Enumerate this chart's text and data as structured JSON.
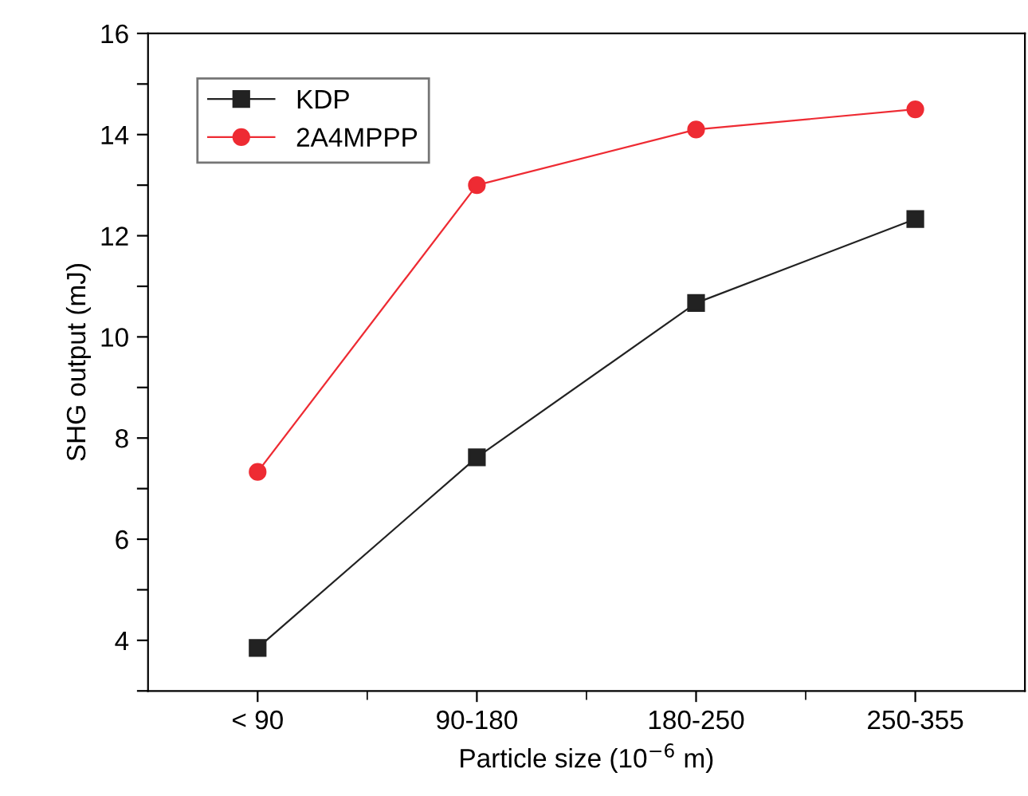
{
  "chart_data": {
    "type": "line",
    "xlabel": "Particle size (10$^{−6}$ m)",
    "ylabel": "SHG output (mJ)",
    "categories": [
      "< 90",
      "90-180",
      "180-250",
      "250-355"
    ],
    "series": [
      {
        "name": "KDP",
        "color": "#222222",
        "marker": "square",
        "values": [
          3.85,
          7.62,
          10.67,
          12.33
        ]
      },
      {
        "name": "2A4MPPP",
        "color": "#ee2b33",
        "marker": "circle",
        "values": [
          7.33,
          13.0,
          14.1,
          14.5
        ]
      }
    ],
    "ylim": [
      3,
      16
    ],
    "yticks": [
      {
        "value": 3,
        "label": null
      },
      4,
      {
        "value": 5,
        "label": null
      },
      6,
      {
        "value": 7,
        "label": null
      },
      8,
      {
        "value": 9,
        "label": null
      },
      10,
      {
        "value": 11,
        "label": null
      },
      12,
      {
        "value": 13,
        "label": null
      },
      14,
      {
        "value": 15,
        "label": null
      },
      16
    ],
    "grid": false,
    "legend": "top left",
    "line_style": "solid"
  }
}
